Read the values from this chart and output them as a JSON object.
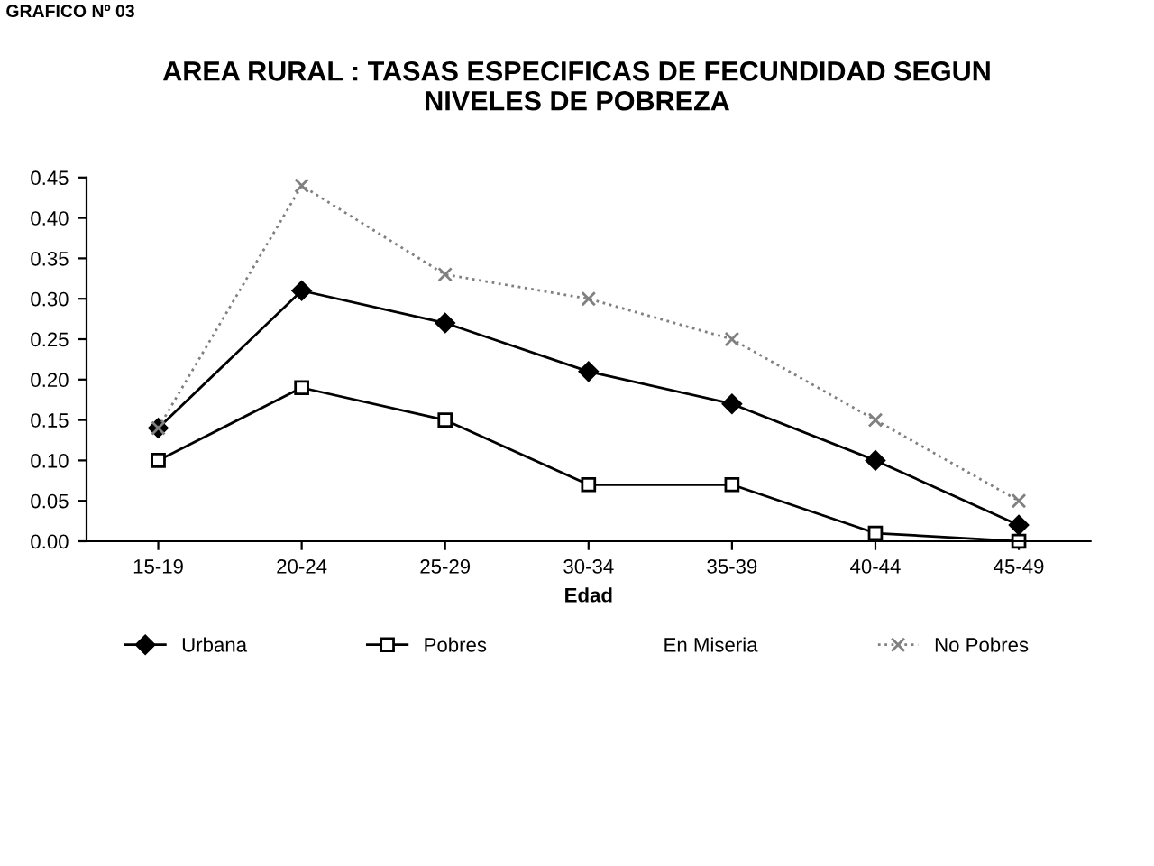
{
  "chart_data": {
    "type": "line",
    "title": "AREA RURAL : TASAS ESPECIFICAS DE FECUNDIDAD SEGUN\nNIVELES DE POBREZA",
    "xlabel": "Edad",
    "annotations": [
      "GRAFICO Nº 03"
    ],
    "categories": [
      "15-19",
      "20-24",
      "25-29",
      "30-34",
      "35-39",
      "40-44",
      "45-49"
    ],
    "series": [
      {
        "name": "Urbana",
        "color": "#000000",
        "marker": "diamond",
        "line_style": "solid",
        "values": [
          0.14,
          0.31,
          0.27,
          0.21,
          0.17,
          0.1,
          0.02
        ]
      },
      {
        "name": "Pobres",
        "color": "#000000",
        "marker": "square",
        "line_style": "solid",
        "values": [
          0.1,
          0.19,
          0.15,
          0.07,
          0.07,
          0.01,
          0.0
        ]
      },
      {
        "name": "En Miseria",
        "marker": "none",
        "line_style": "solid",
        "values": [
          null,
          null,
          null,
          null,
          null,
          null,
          null
        ]
      },
      {
        "name": "No Pobres",
        "color": "#808080",
        "marker": "cross",
        "line_style": "dotted",
        "values": [
          0.14,
          0.44,
          0.33,
          0.3,
          0.25,
          0.15,
          0.05
        ]
      }
    ],
    "ylim": [
      0,
      0.45
    ],
    "yticks": [
      {
        "value": 0,
        "label": "0.00"
      },
      {
        "value": 0.05,
        "label": "0.05"
      },
      {
        "value": 0.1,
        "label": "0.10"
      },
      {
        "value": 0.15,
        "label": "0.15"
      },
      {
        "value": 0.2,
        "label": "0.20"
      },
      {
        "value": 0.25,
        "label": "0.25"
      },
      {
        "value": 0.3,
        "label": "0.30"
      },
      {
        "value": 0.35,
        "label": "0.35"
      },
      {
        "value": 0.4,
        "label": "0.40"
      },
      {
        "value": 0.45,
        "label": "0.45"
      }
    ],
    "grid": false,
    "legend": "bottom"
  }
}
